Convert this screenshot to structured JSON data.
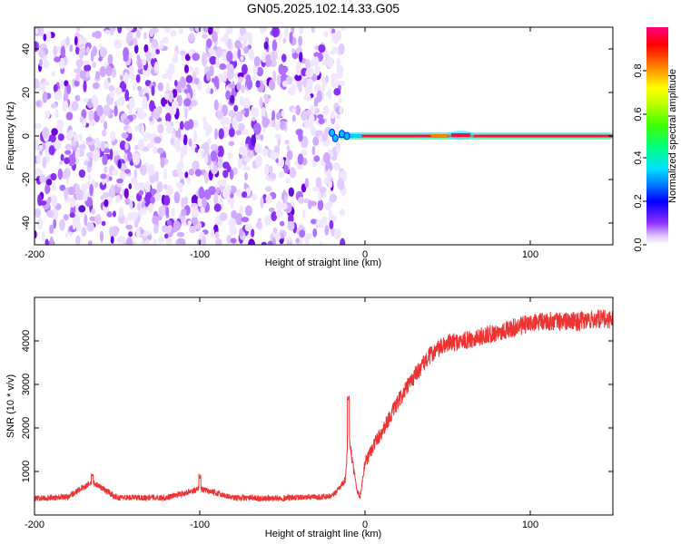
{
  "title": "GN05.2025.102.14.33.G05",
  "chart_data": [
    {
      "type": "heatmap",
      "xlabel": "Height of straight line (km)",
      "ylabel": "Frequency (Hz)",
      "xlim": [
        -200,
        150
      ],
      "ylim": [
        -50,
        50
      ],
      "x_ticks": [
        -200,
        -100,
        0,
        100
      ],
      "x_tick_labels": [
        "-200",
        "-100",
        "0",
        "100"
      ],
      "y_ticks": [
        -40,
        -20,
        0,
        20,
        40
      ],
      "y_tick_labels": [
        "-40",
        "-20",
        "0",
        "20",
        "40"
      ],
      "colorbar": {
        "label": "Normalized spectral amplitude",
        "range": [
          0,
          1
        ],
        "ticks": [
          0,
          0.2,
          0.4,
          0.6,
          0.8
        ],
        "tick_labels": [
          "0.0",
          "0.2",
          "0.4",
          "0.6",
          "0.8"
        ],
        "colors": [
          "#ffffff",
          "#c080ff",
          "#7000ff",
          "#0000ff",
          "#00c0ff",
          "#00ff80",
          "#80ff00",
          "#ffff00",
          "#ff8000",
          "#ff0000",
          "#ff0080"
        ]
      },
      "noise_region_x": [
        -200,
        -13
      ],
      "carrier_line": {
        "frequency": 0,
        "x_start": -16,
        "x_end": 150,
        "segments": [
          {
            "x": [
              -16,
              -10
            ],
            "amplitude": 0.25
          },
          {
            "x": [
              -10,
              -2
            ],
            "amplitude": 0.45
          },
          {
            "x": [
              -2,
              40
            ],
            "amplitude": 0.9
          },
          {
            "x": [
              40,
              50
            ],
            "amplitude": 0.8
          },
          {
            "x": [
              50,
              65
            ],
            "amplitude": 0.95
          },
          {
            "x": [
              65,
              150
            ],
            "amplitude": 0.9
          }
        ]
      },
      "grid": false
    },
    {
      "type": "line",
      "xlabel": "Height of straight line (km)",
      "ylabel": "SNR (10 * v/v)",
      "xlim": [
        -200,
        150
      ],
      "ylim": [
        0,
        5000
      ],
      "x_ticks": [
        -200,
        -100,
        0,
        100
      ],
      "x_tick_labels": [
        "-200",
        "-100",
        "0",
        "100"
      ],
      "y_ticks": [
        1000,
        2000,
        3000,
        4000
      ],
      "y_tick_labels": [
        "1000",
        "2000",
        "3000",
        "4000"
      ],
      "color": "#ee3333",
      "grid": false,
      "series": [
        {
          "x": [
            -200,
            -180,
            -165,
            -150,
            -120,
            -100,
            -80,
            -60,
            -40,
            -20,
            -12,
            -10,
            -7,
            -5,
            -3,
            0,
            5,
            10,
            20,
            30,
            40,
            50,
            60,
            70,
            80,
            90,
            100,
            110,
            120,
            130,
            140,
            150
          ],
          "values": [
            380,
            420,
            760,
            400,
            400,
            600,
            400,
            380,
            400,
            420,
            800,
            1800,
            1100,
            600,
            400,
            1200,
            1600,
            1900,
            2600,
            3200,
            3700,
            3950,
            4000,
            4100,
            4200,
            4300,
            4400,
            4450,
            4450,
            4450,
            4500,
            4500
          ]
        }
      ],
      "spikes": [
        {
          "x": -165,
          "value": 980
        },
        {
          "x": -100,
          "value": 960
        },
        {
          "x": -10,
          "value": 2750
        }
      ]
    }
  ]
}
